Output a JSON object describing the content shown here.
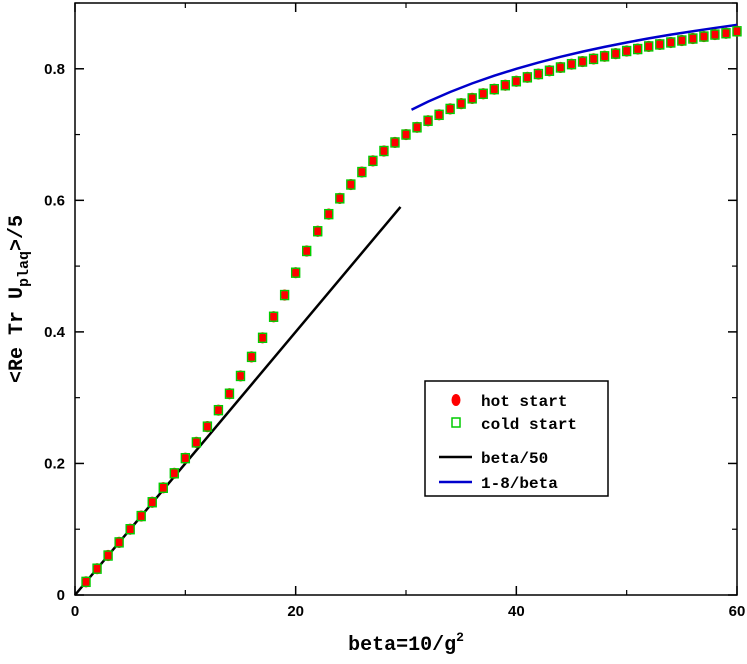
{
  "chart_data": {
    "type": "scatter",
    "xlabel": "beta=10/g",
    "xlabel_sup": "2",
    "ylabel": "<Re Tr U",
    "ylabel_sub": "plaq",
    "ylabel_suffix": ">/5",
    "xlim": [
      0,
      60
    ],
    "ylim": [
      0,
      0.9
    ],
    "x_ticks": [
      0,
      20,
      40,
      60
    ],
    "y_ticks": [
      0,
      0.2,
      0.4,
      0.6,
      0.8
    ],
    "x_tick_labels": [
      "0",
      "20",
      "40",
      "60"
    ],
    "y_tick_labels": [
      "0",
      "0.2",
      "0.4",
      "0.6",
      "0.8"
    ],
    "legend_position": "bottom-right",
    "series": [
      {
        "name": "hot start",
        "kind": "points",
        "marker": "filled-circle",
        "color": "#ff0000",
        "x": [
          1,
          2,
          3,
          4,
          5,
          6,
          7,
          8,
          9,
          10,
          11,
          12,
          13,
          14,
          15,
          16,
          17,
          18,
          19,
          20,
          21,
          22,
          23,
          24,
          25,
          26,
          27,
          28,
          29,
          30,
          31,
          32,
          33,
          34,
          35,
          36,
          37,
          38,
          39,
          40,
          41,
          42,
          43,
          44,
          45,
          46,
          47,
          48,
          49,
          50,
          51,
          52,
          53,
          54,
          55,
          56,
          57,
          58,
          59,
          60
        ],
        "y": [
          0.02,
          0.04,
          0.06,
          0.08,
          0.1,
          0.12,
          0.141,
          0.163,
          0.185,
          0.208,
          0.232,
          0.256,
          0.281,
          0.306,
          0.333,
          0.362,
          0.391,
          0.423,
          0.456,
          0.49,
          0.523,
          0.553,
          0.579,
          0.603,
          0.624,
          0.643,
          0.66,
          0.675,
          0.688,
          0.7,
          0.711,
          0.721,
          0.73,
          0.739,
          0.747,
          0.755,
          0.762,
          0.769,
          0.775,
          0.781,
          0.787,
          0.792,
          0.797,
          0.802,
          0.807,
          0.811,
          0.815,
          0.819,
          0.823,
          0.827,
          0.83,
          0.834,
          0.837,
          0.84,
          0.843,
          0.846,
          0.849,
          0.852,
          0.854,
          0.857
        ]
      },
      {
        "name": "cold start",
        "kind": "points",
        "marker": "open-square",
        "color": "#00cc00",
        "x": [
          1,
          2,
          3,
          4,
          5,
          6,
          7,
          8,
          9,
          10,
          11,
          12,
          13,
          14,
          15,
          16,
          17,
          18,
          19,
          20,
          21,
          22,
          23,
          24,
          25,
          26,
          27,
          28,
          29,
          30,
          31,
          32,
          33,
          34,
          35,
          36,
          37,
          38,
          39,
          40,
          41,
          42,
          43,
          44,
          45,
          46,
          47,
          48,
          49,
          50,
          51,
          52,
          53,
          54,
          55,
          56,
          57,
          58,
          59,
          60
        ],
        "y": [
          0.02,
          0.04,
          0.06,
          0.08,
          0.1,
          0.12,
          0.141,
          0.163,
          0.185,
          0.208,
          0.232,
          0.256,
          0.281,
          0.306,
          0.333,
          0.362,
          0.391,
          0.423,
          0.456,
          0.49,
          0.523,
          0.553,
          0.579,
          0.603,
          0.624,
          0.643,
          0.66,
          0.675,
          0.688,
          0.7,
          0.711,
          0.721,
          0.73,
          0.739,
          0.747,
          0.755,
          0.762,
          0.769,
          0.775,
          0.781,
          0.787,
          0.792,
          0.797,
          0.802,
          0.807,
          0.811,
          0.815,
          0.819,
          0.823,
          0.827,
          0.83,
          0.834,
          0.837,
          0.84,
          0.843,
          0.846,
          0.849,
          0.852,
          0.854,
          0.857
        ]
      },
      {
        "name": "beta/50",
        "kind": "line",
        "color": "#000000",
        "x": [
          0,
          29.5
        ],
        "y": [
          0,
          0.59
        ]
      },
      {
        "name": "1-8/beta",
        "kind": "line",
        "color": "#0000cc",
        "x": [
          30.5,
          32,
          34,
          36,
          38,
          40,
          42,
          44,
          46,
          48,
          50,
          52,
          54,
          56,
          58,
          60
        ],
        "y": [
          0.7377,
          0.75,
          0.7647,
          0.7778,
          0.7895,
          0.8,
          0.8095,
          0.8182,
          0.8261,
          0.8333,
          0.84,
          0.8462,
          0.8519,
          0.8571,
          0.8621,
          0.8667
        ]
      }
    ]
  }
}
